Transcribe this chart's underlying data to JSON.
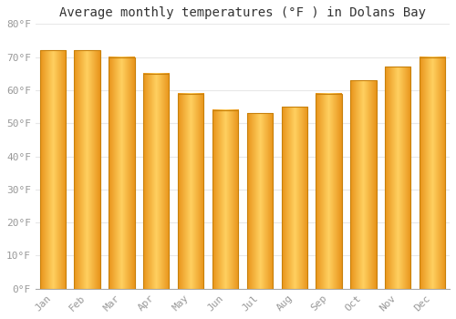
{
  "title": "Average monthly temperatures (°F ) in Dolans Bay",
  "months": [
    "Jan",
    "Feb",
    "Mar",
    "Apr",
    "May",
    "Jun",
    "Jul",
    "Aug",
    "Sep",
    "Oct",
    "Nov",
    "Dec"
  ],
  "values": [
    72,
    72,
    70,
    65,
    59,
    54,
    53,
    55,
    59,
    63,
    67,
    70
  ],
  "bar_color_center": "#FFD060",
  "bar_color_edge": "#F5A623",
  "bar_color_dark": "#E8931A",
  "bar_outline_color": "#C8800A",
  "background_color": "#FFFFFF",
  "plot_bg_color": "#FFFFFF",
  "grid_color": "#E8E8E8",
  "ylim": [
    0,
    80
  ],
  "yticks": [
    0,
    10,
    20,
    30,
    40,
    50,
    60,
    70,
    80
  ],
  "ytick_labels": [
    "0°F",
    "10°F",
    "20°F",
    "30°F",
    "40°F",
    "50°F",
    "60°F",
    "70°F",
    "80°F"
  ],
  "title_fontsize": 10,
  "tick_fontsize": 8,
  "font_family": "monospace",
  "tick_color": "#999999",
  "bar_width": 0.75
}
